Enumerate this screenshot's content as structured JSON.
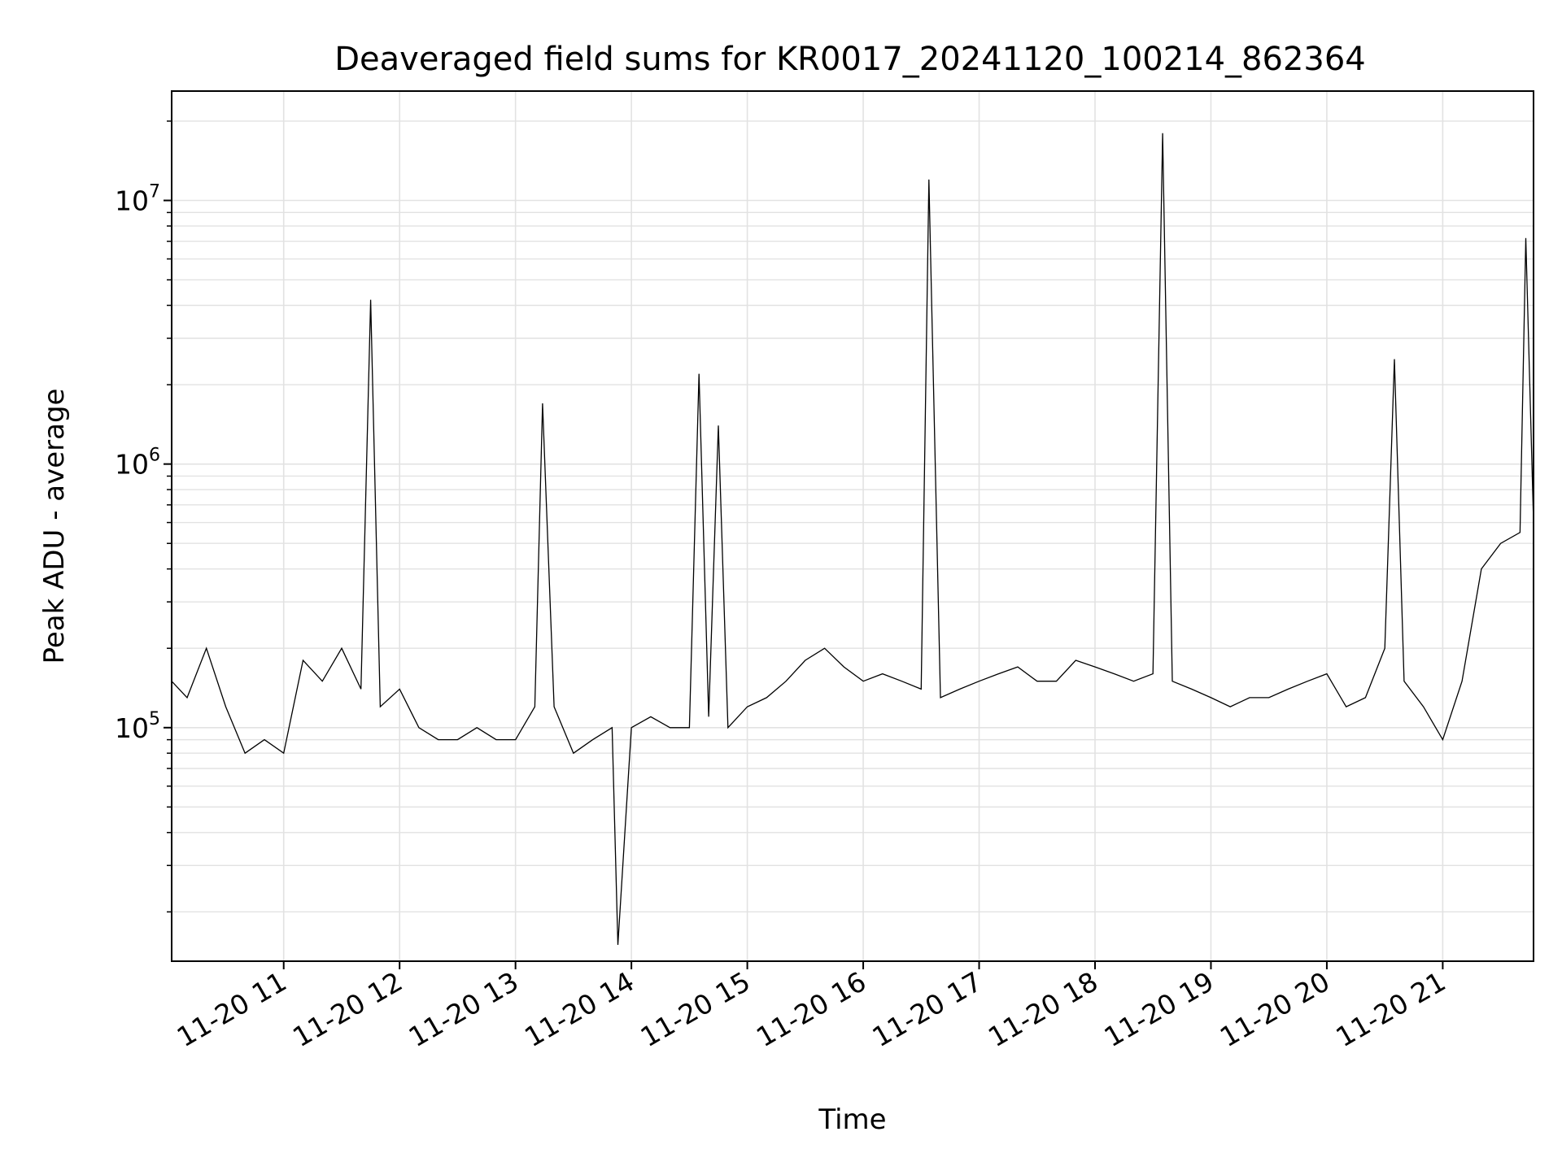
{
  "chart_data": {
    "type": "line",
    "title": "Deaveraged field sums for KR0017_20241120_100214_862364",
    "xlabel": "Time",
    "ylabel": "Peak ADU - average",
    "yscale": "log",
    "grid": true,
    "line_color": "#000000",
    "xlim": [
      "2024-11-20T10:02",
      "2024-11-20T21:47"
    ],
    "ylim": [
      13000,
      26000000
    ],
    "x_ticks": [
      {
        "t": "2024-11-20T11:00",
        "label": "11-20 11"
      },
      {
        "t": "2024-11-20T12:00",
        "label": "11-20 12"
      },
      {
        "t": "2024-11-20T13:00",
        "label": "11-20 13"
      },
      {
        "t": "2024-11-20T14:00",
        "label": "11-20 14"
      },
      {
        "t": "2024-11-20T15:00",
        "label": "11-20 15"
      },
      {
        "t": "2024-11-20T16:00",
        "label": "11-20 16"
      },
      {
        "t": "2024-11-20T17:00",
        "label": "11-20 17"
      },
      {
        "t": "2024-11-20T18:00",
        "label": "11-20 18"
      },
      {
        "t": "2024-11-20T19:00",
        "label": "11-20 19"
      },
      {
        "t": "2024-11-20T20:00",
        "label": "11-20 20"
      },
      {
        "t": "2024-11-20T21:00",
        "label": "11-20 21"
      }
    ],
    "y_ticks": [
      {
        "value": 100000,
        "base": "10",
        "exp": "5"
      },
      {
        "value": 1000000,
        "base": "10",
        "exp": "6"
      },
      {
        "value": 10000000,
        "base": "10",
        "exp": "7"
      }
    ],
    "series": [
      {
        "x": [
          "2024-11-20T10:02",
          "2024-11-20T10:10",
          "2024-11-20T10:20",
          "2024-11-20T10:30",
          "2024-11-20T10:40",
          "2024-11-20T10:50",
          "2024-11-20T11:00",
          "2024-11-20T11:10",
          "2024-11-20T11:20",
          "2024-11-20T11:30",
          "2024-11-20T11:40",
          "2024-11-20T11:45",
          "2024-11-20T11:50",
          "2024-11-20T12:00",
          "2024-11-20T12:10",
          "2024-11-20T12:20",
          "2024-11-20T12:30",
          "2024-11-20T12:40",
          "2024-11-20T12:50",
          "2024-11-20T13:00",
          "2024-11-20T13:10",
          "2024-11-20T13:14",
          "2024-11-20T13:20",
          "2024-11-20T13:30",
          "2024-11-20T13:40",
          "2024-11-20T13:50",
          "2024-11-20T13:53",
          "2024-11-20T14:00",
          "2024-11-20T14:10",
          "2024-11-20T14:20",
          "2024-11-20T14:30",
          "2024-11-20T14:35",
          "2024-11-20T14:40",
          "2024-11-20T14:45",
          "2024-11-20T14:50",
          "2024-11-20T15:00",
          "2024-11-20T15:10",
          "2024-11-20T15:20",
          "2024-11-20T15:30",
          "2024-11-20T15:40",
          "2024-11-20T15:50",
          "2024-11-20T16:00",
          "2024-11-20T16:10",
          "2024-11-20T16:20",
          "2024-11-20T16:30",
          "2024-11-20T16:34",
          "2024-11-20T16:40",
          "2024-11-20T16:50",
          "2024-11-20T17:00",
          "2024-11-20T17:10",
          "2024-11-20T17:20",
          "2024-11-20T17:30",
          "2024-11-20T17:40",
          "2024-11-20T17:50",
          "2024-11-20T18:00",
          "2024-11-20T18:10",
          "2024-11-20T18:20",
          "2024-11-20T18:30",
          "2024-11-20T18:35",
          "2024-11-20T18:40",
          "2024-11-20T18:50",
          "2024-11-20T19:00",
          "2024-11-20T19:10",
          "2024-11-20T19:20",
          "2024-11-20T19:30",
          "2024-11-20T19:40",
          "2024-11-20T19:50",
          "2024-11-20T20:00",
          "2024-11-20T20:10",
          "2024-11-20T20:20",
          "2024-11-20T20:30",
          "2024-11-20T20:35",
          "2024-11-20T20:40",
          "2024-11-20T20:50",
          "2024-11-20T21:00",
          "2024-11-20T21:10",
          "2024-11-20T21:20",
          "2024-11-20T21:30",
          "2024-11-20T21:40",
          "2024-11-20T21:43",
          "2024-11-20T21:47"
        ],
        "y": [
          150000,
          130000,
          200000,
          120000,
          80000,
          90000,
          80000,
          180000,
          150000,
          200000,
          140000,
          4200000,
          120000,
          140000,
          100000,
          90000,
          90000,
          100000,
          90000,
          90000,
          120000,
          1700000,
          120000,
          80000,
          90000,
          100000,
          15000,
          100000,
          110000,
          100000,
          100000,
          2200000,
          110000,
          1400000,
          100000,
          120000,
          130000,
          150000,
          180000,
          200000,
          170000,
          150000,
          160000,
          150000,
          140000,
          12000000,
          130000,
          140000,
          150000,
          160000,
          170000,
          150000,
          150000,
          180000,
          170000,
          160000,
          150000,
          160000,
          18000000,
          150000,
          140000,
          130000,
          120000,
          130000,
          130000,
          140000,
          150000,
          160000,
          120000,
          130000,
          200000,
          2500000,
          150000,
          120000,
          90000,
          150000,
          400000,
          500000,
          550000,
          7200000,
          600000
        ]
      }
    ]
  }
}
